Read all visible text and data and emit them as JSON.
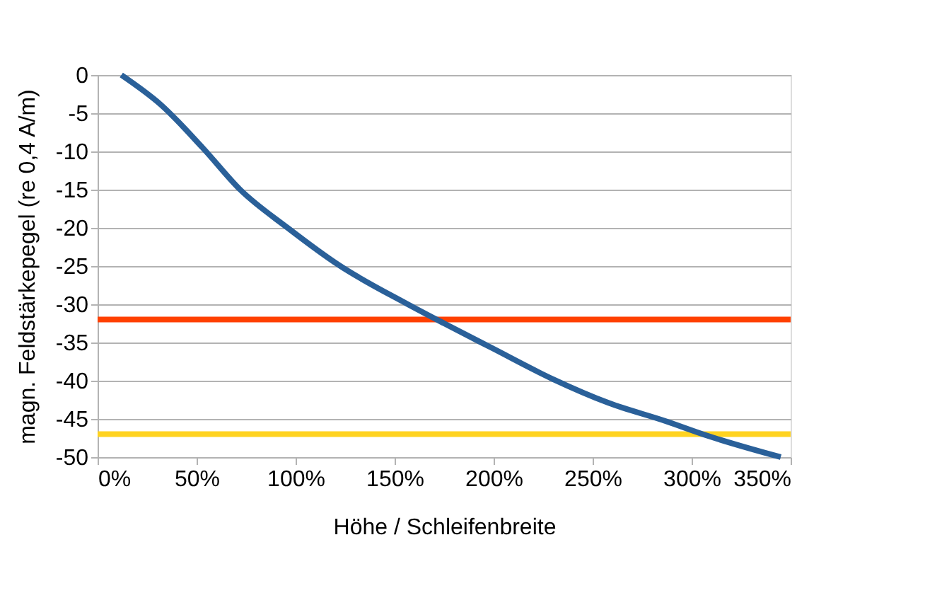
{
  "chart_data": {
    "type": "line",
    "xlabel": "Höhe / Schleifenbreite",
    "ylabel": "magn. Feldstärkepegel (re 0,4 A/m)",
    "x": [
      12,
      32,
      53,
      72,
      96,
      122,
      156,
      175,
      199,
      230,
      258,
      287,
      308,
      345
    ],
    "series": [
      {
        "color": "#2a6099",
        "values": [
          0,
          -3.9,
          -9.5,
          -15,
          -20,
          -24.9,
          -29.9,
          -32.5,
          -35.7,
          -39.8,
          -42.9,
          -45.3,
          -47.2,
          -50
        ]
      }
    ],
    "xlim": [
      0,
      350
    ],
    "xticks": [
      {
        "value": 0,
        "label": "0%"
      },
      {
        "value": 50,
        "label": "50%"
      },
      {
        "value": 100,
        "label": "100%"
      },
      {
        "value": 150,
        "label": "150%"
      },
      {
        "value": 200,
        "label": "200%"
      },
      {
        "value": 250,
        "label": "250%"
      },
      {
        "value": 300,
        "label": "300%"
      },
      {
        "value": 350,
        "label": "350%"
      }
    ],
    "ylim": [
      -50,
      0
    ],
    "yticks": [
      0,
      -5,
      -10,
      -15,
      -20,
      -25,
      -30,
      -35,
      -40,
      -45,
      -50
    ],
    "ref_lines": [
      {
        "axis": "y",
        "value": -32,
        "color": "#ff4000"
      },
      {
        "axis": "y",
        "value": -47,
        "color": "#ffd320"
      }
    ],
    "grid": "y",
    "marker": "none",
    "line_style": "solid"
  }
}
